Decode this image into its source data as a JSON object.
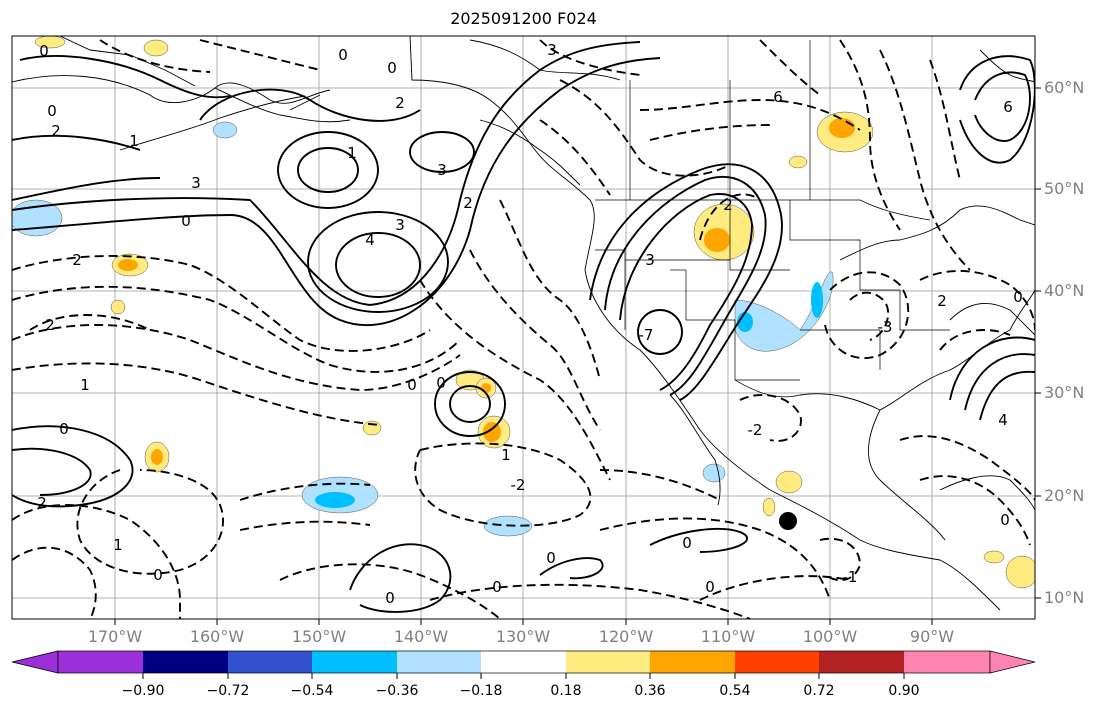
{
  "title": "2025091200 F024",
  "latitude_labels": [
    "60°N",
    "50°N",
    "40°N",
    "30°N",
    "20°N",
    "10°N"
  ],
  "longitude_labels": [
    "170°W",
    "160°W",
    "150°W",
    "140°W",
    "130°W",
    "120°W",
    "110°W",
    "100°W",
    "90°W"
  ],
  "colorbar": {
    "ticks": [
      "−0.90",
      "−0.72",
      "−0.54",
      "−0.36",
      "−0.18",
      "0.18",
      "0.36",
      "0.54",
      "0.72",
      "0.90"
    ],
    "colors": [
      "#9b30d9",
      "#000080",
      "#3050d0",
      "#00bfff",
      "#b0e2ff",
      "#ffffff",
      "#ffeb80",
      "#ffa500",
      "#ff4000",
      "#b22222",
      "#ff85b0"
    ]
  },
  "contour_labels": [
    "0",
    "2",
    "1",
    "3",
    "4",
    "-2",
    "-1",
    "-3",
    "-6",
    "6",
    "-7",
    "-4"
  ],
  "marker": "black-dot"
}
